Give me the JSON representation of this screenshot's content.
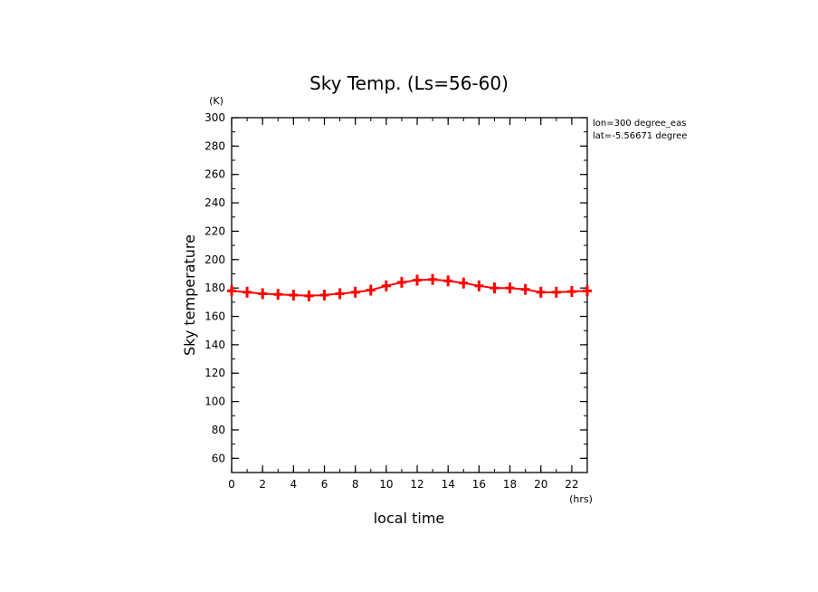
{
  "chart_data": {
    "type": "line",
    "title": "Sky Temp. (Ls=56-60)",
    "xlabel": "local time",
    "ylabel": "Sky temperature",
    "x_unit": "(hrs)",
    "y_unit": "(K)",
    "xlim": [
      0,
      23
    ],
    "ylim": [
      50,
      300
    ],
    "x_ticks": [
      0,
      2,
      4,
      6,
      8,
      10,
      12,
      14,
      16,
      18,
      20,
      22
    ],
    "y_ticks": [
      60,
      80,
      100,
      120,
      140,
      160,
      180,
      200,
      220,
      240,
      260,
      280,
      300
    ],
    "annotations": [
      "lon=300 degree_eas",
      "lat=-5.56671 degree"
    ],
    "grid": false,
    "line_color": "#ff0000",
    "series": [
      {
        "x": [
          0,
          1,
          2,
          3,
          4,
          5,
          6,
          7,
          8,
          9,
          10,
          11,
          12,
          13,
          14,
          15,
          16,
          17,
          18,
          19,
          20,
          21,
          22,
          23
        ],
        "values": [
          178,
          177,
          176,
          175.5,
          175,
          174.5,
          175,
          176,
          177,
          178.5,
          181.5,
          184,
          185.5,
          186,
          185,
          183.5,
          181.5,
          180,
          180,
          179,
          177,
          177,
          177.5,
          178
        ]
      }
    ]
  }
}
